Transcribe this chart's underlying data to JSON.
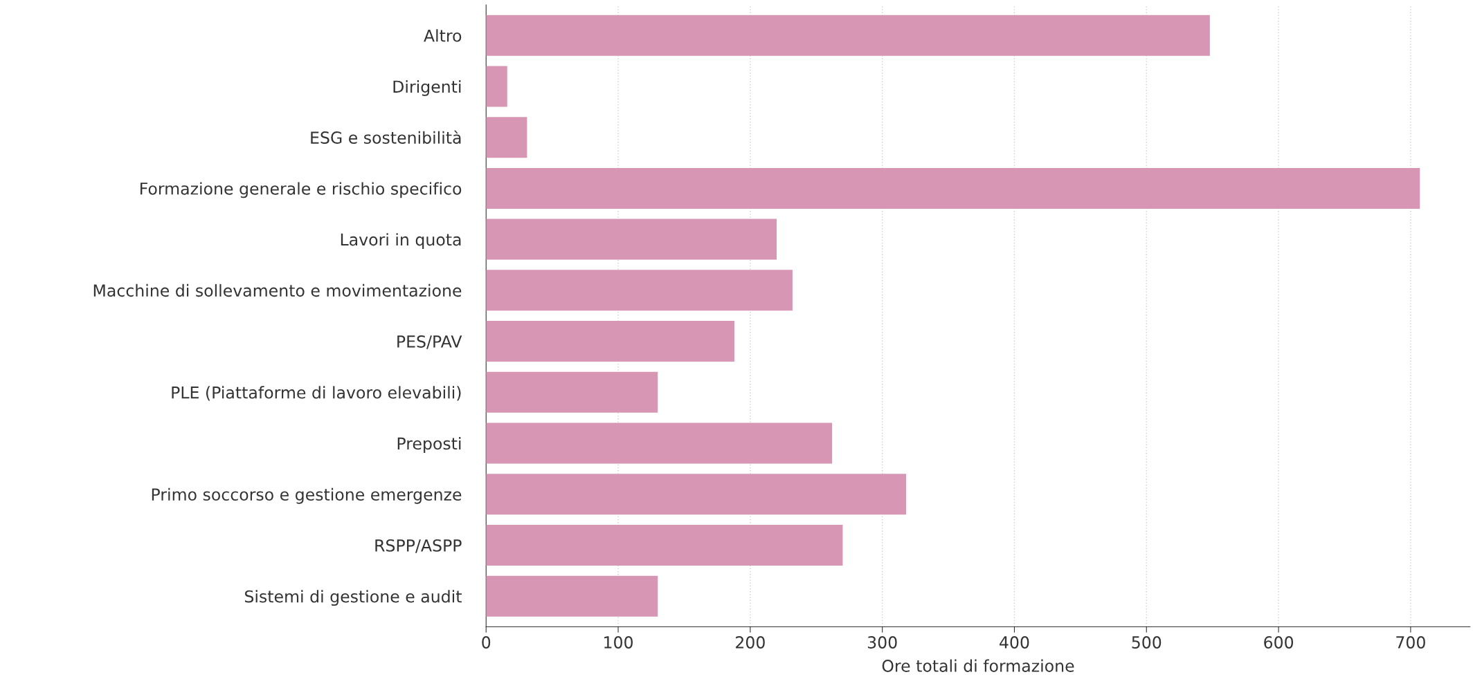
{
  "chart_data": {
    "type": "bar",
    "orientation": "horizontal",
    "xlabel": "Ore totali di formazione",
    "categories": [
      "Altro",
      "Dirigenti",
      "ESG e sostenibilità",
      "Formazione generale e rischio specifico",
      "Lavori in quota",
      "Macchine di sollevamento e movimentazione",
      "PES/PAV",
      "PLE (Piattaforme di lavoro elevabili)",
      "Preposti",
      "Primo soccorso e gestione emergenze",
      "RSPP/ASPP",
      "Sistemi di gestione e audit"
    ],
    "values": [
      548,
      16,
      31,
      707,
      220,
      232,
      188,
      130,
      262,
      318,
      270,
      130
    ],
    "color": "#d896b5",
    "xlim": [
      0,
      745
    ],
    "xticks": [
      0,
      100,
      200,
      300,
      400,
      500,
      600,
      700
    ],
    "grid": "x"
  }
}
